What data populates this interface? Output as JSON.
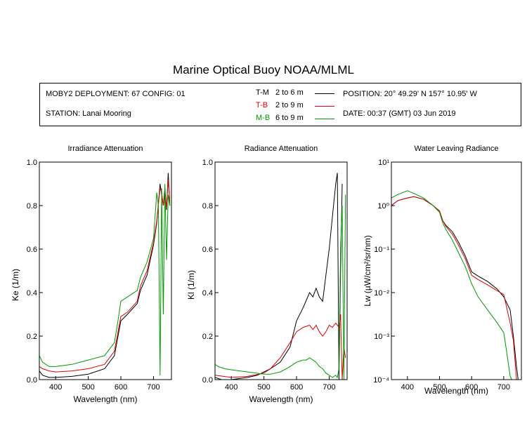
{
  "header": {
    "title": "Marine Optical Buoy NOAA/MLML",
    "deployment": "MOBY2 DEPLOYMENT: 67 CONFIG: 01",
    "station": "STATION: Lanai Mooring",
    "position": "POSITION: 20° 49.29' N   157° 10.95' W",
    "date": "DATE: 00:37 (GMT) 03 Jun 2019"
  },
  "legend": [
    {
      "name": "T-M",
      "range": "2 to 6  m",
      "color": "#000000"
    },
    {
      "name": "T-B",
      "range": "2 to 9  m",
      "color": "#dd0000"
    },
    {
      "name": "M-B",
      "range": "6 to 9  m",
      "color": "#009900"
    }
  ],
  "chart_data": [
    {
      "type": "line",
      "title": "Irradiance Attenuation",
      "xlabel": "Wavelength (nm)",
      "ylabel": "Ke  (1/m)",
      "xlim": [
        350,
        755
      ],
      "ylim": [
        0,
        1
      ],
      "xticks": [
        400,
        500,
        600,
        700
      ],
      "yticks": [
        0,
        0.2,
        0.4,
        0.6,
        0.8,
        1.0
      ],
      "ytick_labels": [
        "0.0",
        "0.2",
        "0.4",
        "0.6",
        "0.8",
        "1.0"
      ],
      "series": [
        {
          "name": "T-M",
          "x": [
            350,
            360,
            380,
            400,
            450,
            500,
            550,
            580,
            590,
            600,
            620,
            650,
            660,
            680,
            700,
            710,
            720,
            725,
            730,
            735,
            740,
            745,
            750
          ],
          "y": [
            0.04,
            0.02,
            0.01,
            0.01,
            0.015,
            0.025,
            0.05,
            0.11,
            0.19,
            0.27,
            0.3,
            0.35,
            0.41,
            0.48,
            0.62,
            0.72,
            0.9,
            0.85,
            0.8,
            0.88,
            0.78,
            0.95,
            0.8
          ]
        },
        {
          "name": "T-B",
          "x": [
            350,
            360,
            380,
            400,
            450,
            500,
            550,
            580,
            590,
            600,
            620,
            650,
            660,
            680,
            700,
            710,
            720,
            725,
            730,
            735,
            740,
            745,
            750
          ],
          "y": [
            0.06,
            0.05,
            0.04,
            0.035,
            0.04,
            0.05,
            0.07,
            0.13,
            0.21,
            0.29,
            0.31,
            0.36,
            0.43,
            0.5,
            0.63,
            0.73,
            0.88,
            0.86,
            0.8,
            0.86,
            0.79,
            0.92,
            0.82
          ]
        },
        {
          "name": "M-B",
          "x": [
            350,
            360,
            380,
            400,
            450,
            500,
            550,
            580,
            590,
            600,
            620,
            650,
            660,
            680,
            700,
            710,
            715,
            720,
            725,
            730,
            735,
            740,
            745,
            750
          ],
          "y": [
            0.11,
            0.08,
            0.06,
            0.06,
            0.07,
            0.09,
            0.11,
            0.17,
            0.26,
            0.36,
            0.38,
            0.41,
            0.47,
            0.54,
            0.65,
            0.86,
            0.8,
            0.02,
            0.88,
            0.3,
            0.9,
            0.55,
            0.85,
            0.8
          ]
        }
      ]
    },
    {
      "type": "line",
      "title": "Radiance Attenuation",
      "xlabel": "Wavelength (nm)",
      "ylabel": "Kl  (1/m)",
      "xlim": [
        350,
        755
      ],
      "ylim": [
        0,
        1
      ],
      "xticks": [
        400,
        500,
        600,
        700
      ],
      "yticks": [
        0,
        0.2,
        0.4,
        0.6,
        0.8,
        1.0
      ],
      "ytick_labels": [
        "0.0",
        "0.2",
        "0.4",
        "0.6",
        "0.8",
        "1.0"
      ],
      "series": [
        {
          "name": "T-M",
          "x": [
            350,
            370,
            400,
            450,
            480,
            500,
            520,
            550,
            580,
            600,
            620,
            640,
            650,
            660,
            670,
            680,
            690,
            700,
            710,
            720,
            725,
            730,
            735,
            740
          ],
          "y": [
            0.01,
            0.0,
            0.0,
            0.01,
            0.02,
            0.035,
            0.05,
            0.08,
            0.15,
            0.27,
            0.33,
            0.4,
            0.38,
            0.42,
            0.38,
            0.36,
            0.48,
            0.6,
            0.75,
            0.9,
            0.95,
            0.0,
            0.5,
            0.9
          ]
        },
        {
          "name": "T-B",
          "x": [
            350,
            400,
            450,
            500,
            520,
            550,
            580,
            600,
            620,
            640,
            650,
            660,
            670,
            680,
            690,
            700,
            710,
            720,
            730,
            735,
            740,
            745,
            750
          ],
          "y": [
            0.02,
            0.01,
            0.015,
            0.03,
            0.05,
            0.1,
            0.17,
            0.22,
            0.24,
            0.25,
            0.23,
            0.25,
            0.22,
            0.2,
            0.22,
            0.25,
            0.24,
            0.26,
            0.24,
            0.3,
            0.0,
            0.15,
            0.1
          ]
        },
        {
          "name": "M-B",
          "x": [
            350,
            360,
            380,
            400,
            450,
            500,
            520,
            550,
            580,
            600,
            620,
            630,
            640,
            650,
            660,
            670,
            680,
            690,
            700,
            710,
            720,
            725,
            730,
            735,
            740,
            745,
            750
          ],
          "y": [
            0.07,
            0.06,
            0.05,
            0.045,
            0.035,
            0.025,
            0.025,
            0.035,
            0.06,
            0.08,
            0.09,
            0.09,
            0.1,
            0.09,
            0.08,
            0.06,
            0.05,
            0.03,
            0.02,
            0.01,
            0.02,
            0.01,
            0.05,
            0.6,
            0.8,
            0.0,
            0.85
          ]
        }
      ]
    },
    {
      "type": "line",
      "title": "Water Leaving Radiance",
      "xlabel": "Wavelength (nm)",
      "ylabel": "Lw  (µW/cm²/sr/nm)",
      "xlim": [
        350,
        755
      ],
      "ylim": [
        0.0001,
        10
      ],
      "yscale": "log",
      "xticks": [
        400,
        500,
        600,
        700
      ],
      "yticks": [
        0.0001,
        0.001,
        0.01,
        0.1,
        1,
        10
      ],
      "ytick_labels": [
        "10⁻⁴",
        "10⁻³",
        "10⁻²",
        "10⁻¹",
        "10⁰",
        "10¹"
      ],
      "series": [
        {
          "name": "T-M",
          "x": [
            350,
            370,
            400,
            420,
            450,
            480,
            500,
            510,
            520,
            540,
            560,
            580,
            600,
            620,
            650,
            680,
            700,
            720,
            730,
            740,
            745
          ],
          "y": [
            1.0,
            1.3,
            1.5,
            1.6,
            1.4,
            1.0,
            0.75,
            0.45,
            0.35,
            0.25,
            0.14,
            0.07,
            0.03,
            0.024,
            0.018,
            0.012,
            0.008,
            0.004,
            0.001,
            0.0002,
            0.0001
          ]
        },
        {
          "name": "T-B",
          "x": [
            350,
            370,
            400,
            420,
            450,
            480,
            500,
            510,
            520,
            540,
            560,
            580,
            600,
            620,
            650,
            680,
            700,
            720,
            730,
            740
          ],
          "y": [
            1.0,
            1.3,
            1.5,
            1.6,
            1.4,
            1.0,
            0.75,
            0.45,
            0.33,
            0.22,
            0.12,
            0.06,
            0.025,
            0.02,
            0.015,
            0.011,
            0.009,
            0.002,
            0.0008,
            0.0001
          ]
        },
        {
          "name": "M-B",
          "x": [
            350,
            370,
            400,
            420,
            450,
            480,
            500,
            510,
            520,
            540,
            560,
            580,
            600,
            620,
            650,
            680,
            700,
            710,
            720,
            725
          ],
          "y": [
            1.5,
            1.8,
            2.2,
            1.9,
            1.5,
            1.0,
            0.7,
            0.4,
            0.28,
            0.16,
            0.08,
            0.04,
            0.016,
            0.008,
            0.004,
            0.002,
            0.0012,
            0.0004,
            0.00012,
            0.0001
          ]
        }
      ]
    }
  ]
}
